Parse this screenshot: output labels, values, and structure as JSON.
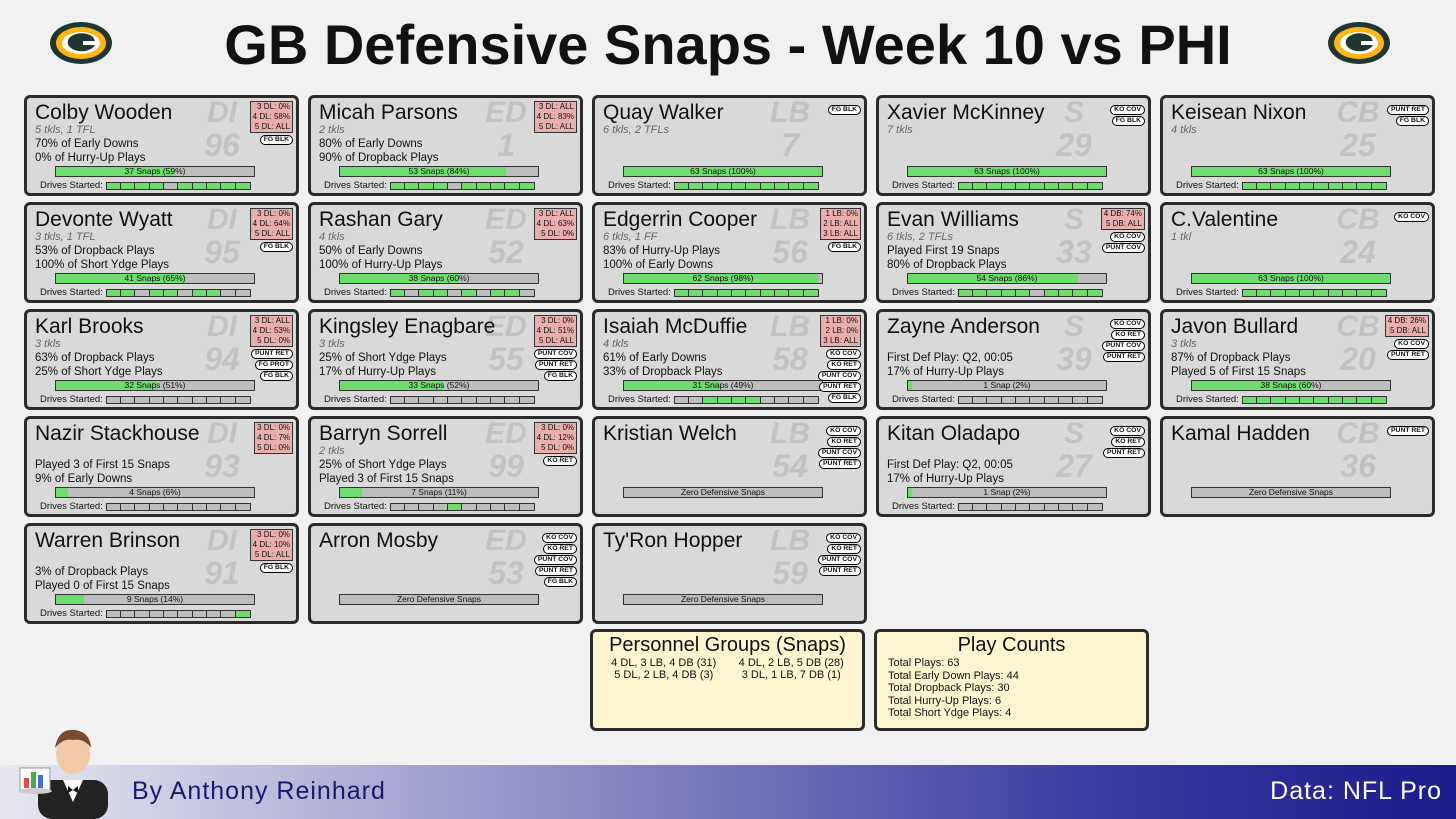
{
  "title": "GB Defensive Snaps - Week 10 vs PHI",
  "footer": {
    "author": "By Anthony Reinhard",
    "source": "Data: NFL Pro"
  },
  "colors": {
    "green": "#6fdc6f",
    "grey": "#bdbdbd",
    "alignment_bg": "#e9aeae",
    "logo_green": "#203731",
    "logo_gold": "#ffb612"
  },
  "labels": {
    "drives": "Drives Started:"
  },
  "players": [
    {
      "name": "Colby Wooden",
      "pos": "DI",
      "num": "96",
      "sub": "5 tkls, 1 TFL",
      "stats": [
        "70% of Early Downs",
        "0% of Hurry-Up Plays"
      ],
      "snaps": "37 Snaps (59%)",
      "pct": 59,
      "drives": [
        1,
        1,
        1,
        1,
        0,
        1,
        1,
        1,
        1,
        1
      ],
      "align": [
        "3 DL: 0%",
        "4 DL: 58%",
        "5 DL: ALL"
      ],
      "tags": [
        "FG BLK"
      ]
    },
    {
      "name": "Micah Parsons",
      "pos": "ED",
      "num": "1",
      "sub": "2 tkls",
      "stats": [
        "80% of Early Downs",
        "90% of Dropback Plays"
      ],
      "snaps": "53 Snaps (84%)",
      "pct": 84,
      "drives": [
        1,
        1,
        1,
        1,
        0,
        1,
        1,
        1,
        1,
        1
      ],
      "align": [
        "3 DL: ALL",
        "4 DL: 83%",
        "5 DL: ALL"
      ],
      "tags": []
    },
    {
      "name": "Quay Walker",
      "pos": "LB",
      "num": "7",
      "sub": "6 tkls, 2 TFLs",
      "stats": [
        "",
        ""
      ],
      "snaps": "63 Snaps (100%)",
      "pct": 100,
      "drives": [
        1,
        1,
        1,
        1,
        1,
        1,
        1,
        1,
        1,
        1
      ],
      "align": [],
      "tags": [
        "FG BLK"
      ]
    },
    {
      "name": "Xavier McKinney",
      "pos": "S",
      "num": "29",
      "sub": "7 tkls",
      "stats": [
        "",
        ""
      ],
      "snaps": "63 Snaps (100%)",
      "pct": 100,
      "drives": [
        1,
        1,
        1,
        1,
        1,
        1,
        1,
        1,
        1,
        1
      ],
      "align": [],
      "tags": [
        "KO COV",
        "FG BLK"
      ]
    },
    {
      "name": "Keisean Nixon",
      "pos": "CB",
      "num": "25",
      "sub": "4 tkls",
      "stats": [
        "",
        ""
      ],
      "snaps": "63 Snaps (100%)",
      "pct": 100,
      "drives": [
        1,
        1,
        1,
        1,
        1,
        1,
        1,
        1,
        1,
        1
      ],
      "align": [],
      "tags": [
        "PUNT RET",
        "FG BLK"
      ]
    },
    {
      "name": "Devonte Wyatt",
      "pos": "DI",
      "num": "95",
      "sub": "3 tkls, 1 TFL",
      "stats": [
        "53% of Dropback Plays",
        "100% of Short Ydge Plays"
      ],
      "snaps": "41 Snaps (65%)",
      "pct": 65,
      "drives": [
        1,
        1,
        0,
        1,
        1,
        0,
        1,
        1,
        0,
        0
      ],
      "align": [
        "3 DL: 0%",
        "4 DL: 64%",
        "5 DL: ALL"
      ],
      "tags": [
        "FG BLK"
      ]
    },
    {
      "name": "Rashan Gary",
      "pos": "ED",
      "num": "52",
      "sub": "4 tkls",
      "stats": [
        "50% of Early Downs",
        "100% of Hurry-Up Plays"
      ],
      "snaps": "38 Snaps (60%)",
      "pct": 60,
      "drives": [
        1,
        0,
        1,
        1,
        0,
        1,
        0,
        1,
        1,
        0
      ],
      "align": [
        "3 DL: ALL",
        "4 DL: 63%",
        "5 DL: 0%"
      ],
      "tags": []
    },
    {
      "name": "Edgerrin Cooper",
      "pos": "LB",
      "num": "56",
      "sub": "6 tkls, 1 FF",
      "stats": [
        "83% of Hurry-Up Plays",
        "100% of Early Downs"
      ],
      "snaps": "62 Snaps (98%)",
      "pct": 98,
      "drives": [
        1,
        1,
        1,
        1,
        1,
        1,
        1,
        1,
        1,
        1
      ],
      "align": [
        "1 LB: 0%",
        "2 LB: ALL",
        "3 LB: ALL"
      ],
      "tags": [
        "FG BLK"
      ]
    },
    {
      "name": "Evan Williams",
      "pos": "S",
      "num": "33",
      "sub": "6 tkls, 2 TFLs",
      "stats": [
        "Played First 19 Snaps",
        "80% of Dropback Plays"
      ],
      "snaps": "54 Snaps (86%)",
      "pct": 86,
      "drives": [
        1,
        1,
        1,
        1,
        1,
        0,
        1,
        1,
        1,
        1
      ],
      "align": [
        "4 DB: 74%",
        "5 DB: ALL"
      ],
      "tags": [
        "KO COV",
        "PUNT COV"
      ]
    },
    {
      "name": "C.Valentine",
      "pos": "CB",
      "num": "24",
      "sub": "1 tkl",
      "stats": [
        "",
        ""
      ],
      "snaps": "63 Snaps (100%)",
      "pct": 100,
      "drives": [
        1,
        1,
        1,
        1,
        1,
        1,
        1,
        1,
        1,
        1
      ],
      "align": [],
      "tags": [
        "KO COV"
      ]
    },
    {
      "name": "Karl Brooks",
      "pos": "DI",
      "num": "94",
      "sub": "3 tkls",
      "stats": [
        "63% of Dropback Plays",
        "25% of Short Ydge Plays"
      ],
      "snaps": "32 Snaps (51%)",
      "pct": 51,
      "drives": [
        0,
        0,
        0,
        0,
        0,
        0,
        0,
        0,
        0,
        0
      ],
      "align": [
        "3 DL: ALL",
        "4 DL: 53%",
        "5 DL: 0%"
      ],
      "tags": [
        "PUNT RET",
        "FG PROT",
        "FG BLK"
      ]
    },
    {
      "name": "Kingsley Enagbare",
      "pos": "ED",
      "num": "55",
      "sub": "3 tkls",
      "stats": [
        "25% of Short Ydge Plays",
        "17% of Hurry-Up Plays"
      ],
      "snaps": "33 Snaps (52%)",
      "pct": 52,
      "drives": [
        0,
        0,
        0,
        0,
        0,
        0,
        0,
        0,
        0,
        0
      ],
      "align": [
        "3 DL: 0%",
        "4 DL: 51%",
        "5 DL: ALL"
      ],
      "tags": [
        "PUNT COV",
        "PUNT RET",
        "FG BLK"
      ]
    },
    {
      "name": "Isaiah McDuffie",
      "pos": "LB",
      "num": "58",
      "sub": "4 tkls",
      "stats": [
        "61% of Early Downs",
        "33% of Dropback Plays"
      ],
      "snaps": "31 Snaps (49%)",
      "pct": 49,
      "drives": [
        0,
        0,
        1,
        1,
        1,
        1,
        0,
        0,
        0,
        0
      ],
      "align": [
        "1 LB: 0%",
        "2 LB: 0%",
        "3 LB: ALL"
      ],
      "tags": [
        "KO COV",
        "KO RET",
        "PUNT COV",
        "PUNT RET",
        "FG BLK"
      ]
    },
    {
      "name": "Zayne Anderson",
      "pos": "S",
      "num": "39",
      "sub": "",
      "stats": [
        "First Def Play: Q2, 00:05",
        "17% of Hurry-Up Plays"
      ],
      "snaps": "1 Snap (2%)",
      "pct": 2,
      "drives": [
        0,
        0,
        0,
        0,
        0,
        0,
        0,
        0,
        0,
        0
      ],
      "align": [],
      "tags": [
        "KO COV",
        "KO RET",
        "PUNT COV",
        "PUNT RET"
      ]
    },
    {
      "name": "Javon Bullard",
      "pos": "CB",
      "num": "20",
      "sub": "3 tkls",
      "stats": [
        "87% of Dropback Plays",
        "Played 5 of First 15 Snaps"
      ],
      "snaps": "38 Snaps (60%)",
      "pct": 60,
      "drives": [
        1,
        1,
        1,
        1,
        1,
        1,
        1,
        1,
        1,
        1
      ],
      "align": [
        "4 DB: 26%",
        "5 DB: ALL"
      ],
      "tags": [
        "KO COV",
        "PUNT RET"
      ]
    },
    {
      "name": "Nazir Stackhouse",
      "pos": "DI",
      "num": "93",
      "sub": "",
      "stats": [
        "Played 3 of First 15 Snaps",
        "9% of Early Downs"
      ],
      "snaps": "4 Snaps (6%)",
      "pct": 6,
      "drives": [
        0,
        0,
        0,
        0,
        0,
        0,
        0,
        0,
        0,
        0
      ],
      "align": [
        "3 DL: 0%",
        "4 DL: 7%",
        "5 DL: 0%"
      ],
      "tags": []
    },
    {
      "name": "Barryn Sorrell",
      "pos": "ED",
      "num": "99",
      "sub": "2 tkls",
      "stats": [
        "25% of Short Ydge Plays",
        "Played 3 of First 15 Snaps"
      ],
      "snaps": "7 Snaps (11%)",
      "pct": 11,
      "drives": [
        0,
        0,
        0,
        0,
        1,
        0,
        0,
        0,
        0,
        0
      ],
      "align": [
        "3 DL: 0%",
        "4 DL: 12%",
        "5 DL: 0%"
      ],
      "tags": [
        "KO RET"
      ]
    },
    {
      "name": "Kristian Welch",
      "pos": "LB",
      "num": "54",
      "sub": "",
      "stats": [
        "",
        ""
      ],
      "snaps": "Zero Defensive Snaps",
      "pct": 0,
      "drives": null,
      "align": [],
      "tags": [
        "KO COV",
        "KO RET",
        "PUNT COV",
        "PUNT RET"
      ]
    },
    {
      "name": "Kitan Oladapo",
      "pos": "S",
      "num": "27",
      "sub": "",
      "stats": [
        "First Def Play: Q2, 00:05",
        "17% of Hurry-Up Plays"
      ],
      "snaps": "1 Snap (2%)",
      "pct": 2,
      "drives": [
        0,
        0,
        0,
        0,
        0,
        0,
        0,
        0,
        0,
        0
      ],
      "align": [],
      "tags": [
        "KO COV",
        "KO RET",
        "PUNT RET"
      ]
    },
    {
      "name": "Kamal Hadden",
      "pos": "CB",
      "num": "36",
      "sub": "",
      "stats": [
        "",
        ""
      ],
      "snaps": "Zero Defensive Snaps",
      "pct": 0,
      "drives": null,
      "align": [],
      "tags": [
        "PUNT RET"
      ]
    },
    {
      "name": "Warren Brinson",
      "pos": "DI",
      "num": "91",
      "sub": "",
      "stats": [
        "3% of Dropback Plays",
        "Played 0 of First 15 Snaps"
      ],
      "snaps": "9 Snaps (14%)",
      "pct": 14,
      "drives": [
        0,
        0,
        0,
        0,
        0,
        0,
        0,
        0,
        0,
        1
      ],
      "align": [
        "3 DL: 0%",
        "4 DL: 10%",
        "5 DL: ALL"
      ],
      "tags": [
        "FG BLK"
      ]
    },
    {
      "name": "Arron Mosby",
      "pos": "ED",
      "num": "53",
      "sub": "",
      "stats": [
        "",
        ""
      ],
      "snaps": "Zero Defensive Snaps",
      "pct": 0,
      "drives": null,
      "align": [],
      "tags": [
        "KO COV",
        "KO RET",
        "PUNT COV",
        "PUNT RET",
        "FG BLK"
      ]
    },
    {
      "name": "Ty'Ron Hopper",
      "pos": "LB",
      "num": "59",
      "sub": "",
      "stats": [
        "",
        ""
      ],
      "snaps": "Zero Defensive Snaps",
      "pct": 0,
      "drives": null,
      "align": [],
      "tags": [
        "KO COV",
        "KO RET",
        "PUNT COV",
        "PUNT RET"
      ]
    }
  ],
  "personnel": {
    "title": "Personnel Groups (Snaps)",
    "items": [
      "4 DL, 3 LB, 4 DB (31)",
      "4 DL, 2 LB, 5 DB (28)",
      "5 DL, 2 LB, 4 DB (3)",
      "3 DL, 1 LB, 7 DB (1)"
    ]
  },
  "playcounts": {
    "title": "Play Counts",
    "items": [
      "Total Plays: 63",
      "Total Early Down Plays: 44",
      "Total Dropback Plays: 30",
      "Total Hurry-Up Plays: 6",
      "Total Short Ydge Plays: 4"
    ]
  }
}
